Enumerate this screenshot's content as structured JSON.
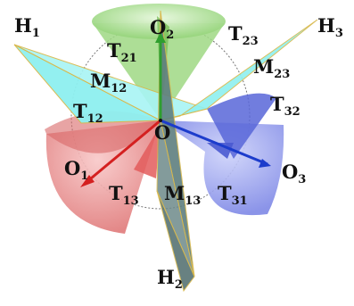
{
  "labels": {
    "o": "O",
    "o1": {
      "base": "O",
      "sub": "1"
    },
    "o2": {
      "base": "O",
      "sub": "2"
    },
    "o3": {
      "base": "O",
      "sub": "3"
    },
    "h1": {
      "base": "H",
      "sub": "1"
    },
    "h2": {
      "base": "H",
      "sub": "2"
    },
    "h3": {
      "base": "H",
      "sub": "3"
    },
    "t21": {
      "base": "T",
      "sub": "21"
    },
    "t23": {
      "base": "T",
      "sub": "23"
    },
    "t12": {
      "base": "T",
      "sub": "12"
    },
    "t32": {
      "base": "T",
      "sub": "32"
    },
    "t13": {
      "base": "T",
      "sub": "13"
    },
    "t31": {
      "base": "T",
      "sub": "31"
    },
    "m12": {
      "base": "M",
      "sub": "12"
    },
    "m23": {
      "base": "M",
      "sub": "23"
    },
    "m13": {
      "base": "M",
      "sub": "13"
    }
  },
  "colors": {
    "green_cone": "#a6e08a",
    "red_cone": "#e88a8a",
    "blue_cone": "#8a94ea",
    "cyan_plane": "#8ef0f0",
    "slate_plane": "#6f8a8a",
    "edge_gold": "#d8b84a",
    "green_axis": "#2f9e2f",
    "red_axis": "#d42020",
    "blue_axis": "#1c3ccc",
    "circle": "#777777"
  }
}
